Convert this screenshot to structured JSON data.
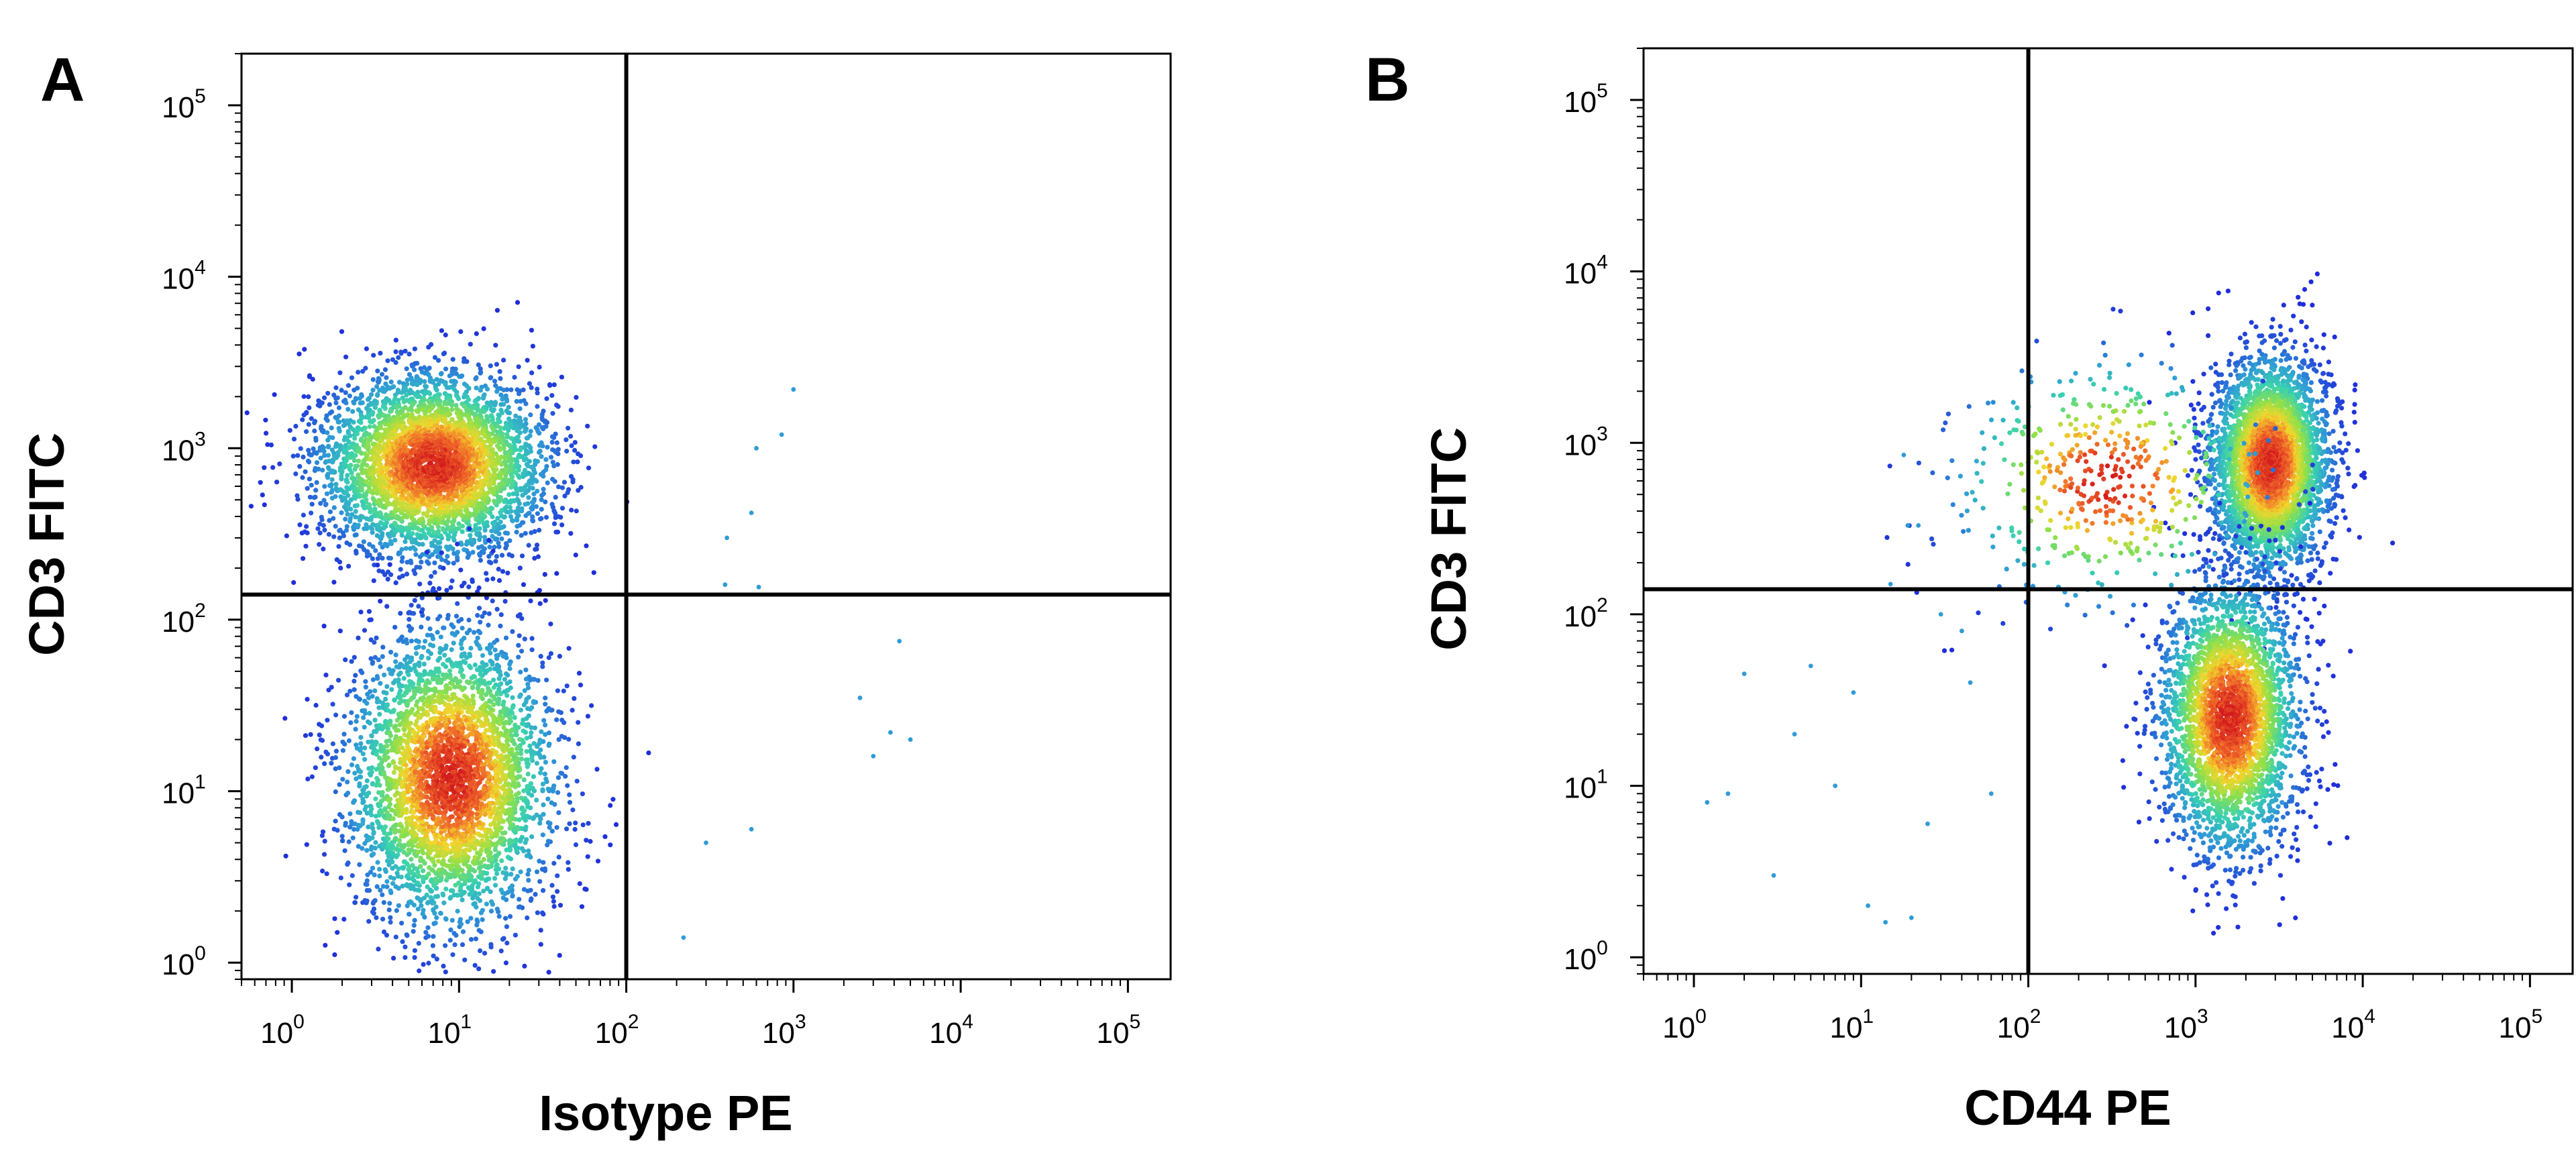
{
  "chart_data": [
    {
      "type": "scatter",
      "panel_label": "A",
      "xlabel": "Isotype PE",
      "ylabel": "CD3 FITC",
      "x_scale": "log",
      "y_scale": "log",
      "xlim": [
        0.5,
        180000
      ],
      "ylim": [
        0.8,
        200000
      ],
      "x_ticks": [
        {
          "base": "10",
          "exp": "0",
          "value": 1
        },
        {
          "base": "10",
          "exp": "1",
          "value": 10
        },
        {
          "base": "10",
          "exp": "2",
          "value": 100
        },
        {
          "base": "10",
          "exp": "3",
          "value": 1000
        },
        {
          "base": "10",
          "exp": "4",
          "value": 10000
        },
        {
          "base": "10",
          "exp": "5",
          "value": 100000
        }
      ],
      "y_ticks": [
        {
          "base": "10",
          "exp": "0",
          "value": 1
        },
        {
          "base": "10",
          "exp": "1",
          "value": 10
        },
        {
          "base": "10",
          "exp": "2",
          "value": 100
        },
        {
          "base": "10",
          "exp": "3",
          "value": 1000
        },
        {
          "base": "10",
          "exp": "4",
          "value": 10000
        },
        {
          "base": "10",
          "exp": "5",
          "value": 100000
        }
      ],
      "quadrant_gate": {
        "x": 100,
        "y": 140
      },
      "density_scale": [
        "#1f2bd9",
        "#2f9bd6",
        "#39d1b0",
        "#8fe04a",
        "#f2d62c",
        "#f0682a",
        "#d41d1d"
      ],
      "populations": [
        {
          "name": "CD3+ cluster",
          "center_x": 7,
          "center_y": 800,
          "sigma_log_x": 0.33,
          "sigma_log_y": 0.26,
          "count": 4200
        },
        {
          "name": "CD3- cluster",
          "center_x": 9,
          "center_y": 12,
          "sigma_log_x": 0.3,
          "sigma_log_y": 0.42,
          "count": 3800
        }
      ],
      "outliers": [
        [
          1000,
          2200
        ],
        [
          600,
          1000
        ],
        [
          850,
          1200
        ],
        [
          400,
          300
        ],
        [
          560,
          420
        ],
        [
          2500,
          35
        ],
        [
          3800,
          22
        ],
        [
          5000,
          20
        ],
        [
          3000,
          16
        ],
        [
          4300,
          75
        ],
        [
          300,
          5
        ],
        [
          560,
          6
        ],
        [
          220,
          1.4
        ],
        [
          390,
          160
        ],
        [
          620,
          155
        ]
      ]
    },
    {
      "type": "scatter",
      "panel_label": "B",
      "xlabel": "CD44 PE",
      "ylabel": "CD3 FITC",
      "x_scale": "log",
      "y_scale": "log",
      "xlim": [
        0.5,
        180000
      ],
      "ylim": [
        0.8,
        200000
      ],
      "x_ticks": [
        {
          "base": "10",
          "exp": "0",
          "value": 1
        },
        {
          "base": "10",
          "exp": "1",
          "value": 10
        },
        {
          "base": "10",
          "exp": "2",
          "value": 100
        },
        {
          "base": "10",
          "exp": "3",
          "value": 1000
        },
        {
          "base": "10",
          "exp": "4",
          "value": 10000
        },
        {
          "base": "10",
          "exp": "5",
          "value": 100000
        }
      ],
      "y_ticks": [
        {
          "base": "10",
          "exp": "0",
          "value": 1
        },
        {
          "base": "10",
          "exp": "1",
          "value": 10
        },
        {
          "base": "10",
          "exp": "2",
          "value": 100
        },
        {
          "base": "10",
          "exp": "3",
          "value": 1000
        },
        {
          "base": "10",
          "exp": "4",
          "value": 10000
        },
        {
          "base": "10",
          "exp": "5",
          "value": 100000
        }
      ],
      "quadrant_gate": {
        "x": 100,
        "y": 140
      },
      "density_scale": [
        "#1f2bd9",
        "#2f9bd6",
        "#39d1b0",
        "#8fe04a",
        "#f2d62c",
        "#f0682a",
        "#d41d1d"
      ],
      "populations": [
        {
          "name": "CD3+ CD44+ cluster",
          "center_x": 2800,
          "center_y": 750,
          "sigma_log_x": 0.17,
          "sigma_log_y": 0.3,
          "count": 3600
        },
        {
          "name": "CD3- CD44+ cluster",
          "center_x": 1600,
          "center_y": 25,
          "sigma_log_x": 0.2,
          "sigma_log_y": 0.38,
          "count": 3200
        },
        {
          "name": "diffuse CD44 tail",
          "center_x": 300,
          "center_y": 600,
          "sigma_log_x": 0.45,
          "sigma_log_y": 0.35,
          "count": 500
        }
      ],
      "outliers": [
        [
          18,
          850
        ],
        [
          19,
          330
        ],
        [
          22,
          330
        ],
        [
          15,
          150
        ],
        [
          30,
          100
        ],
        [
          40,
          80
        ],
        [
          5,
          50
        ],
        [
          2,
          45
        ],
        [
          4,
          20
        ],
        [
          7,
          10
        ],
        [
          1.2,
          8
        ],
        [
          3,
          3
        ],
        [
          11,
          2
        ],
        [
          14,
          1.6
        ],
        [
          20,
          1.7
        ],
        [
          25,
          6
        ],
        [
          60,
          9
        ],
        [
          45,
          40
        ],
        [
          9,
          35
        ],
        [
          1.6,
          9
        ]
      ]
    }
  ]
}
